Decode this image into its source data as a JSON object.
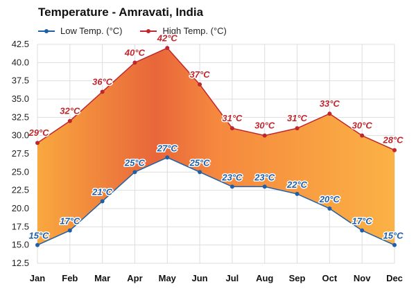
{
  "chart_data": {
    "type": "line",
    "title": "Temperature - Amravati, India",
    "categories": [
      "Jan",
      "Feb",
      "Mar",
      "Apr",
      "May",
      "Jun",
      "Jul",
      "Aug",
      "Sep",
      "Oct",
      "Nov",
      "Dec"
    ],
    "series": [
      {
        "name": "Low Temp. (°C)",
        "values": [
          15,
          17,
          21,
          25,
          27,
          25,
          23,
          23,
          22,
          20,
          17,
          15
        ],
        "labels": [
          "15°C",
          "17°C",
          "21°C",
          "25°C",
          "27°C",
          "25°C",
          "23°C",
          "23°C",
          "22°C",
          "20°C",
          "17°C",
          "15°C"
        ],
        "color": "#1f5fa8"
      },
      {
        "name": "High Temp. (°C)",
        "values": [
          29,
          32,
          36,
          40,
          42,
          37,
          31,
          30,
          31,
          33,
          30,
          28
        ],
        "labels": [
          "29°C",
          "32°C",
          "36°C",
          "40°C",
          "42°C",
          "37°C",
          "31°C",
          "30°C",
          "31°C",
          "33°C",
          "30°C",
          "28°C"
        ],
        "color": "#c0262d"
      }
    ],
    "yticks": [
      "12.5",
      "15.0",
      "17.5",
      "20.0",
      "22.5",
      "25.0",
      "27.5",
      "30.0",
      "32.5",
      "35.0",
      "37.5",
      "40.0",
      "42.5"
    ],
    "ylim": [
      12.5,
      42.5
    ],
    "grid": true,
    "legend_position": "top-left"
  }
}
